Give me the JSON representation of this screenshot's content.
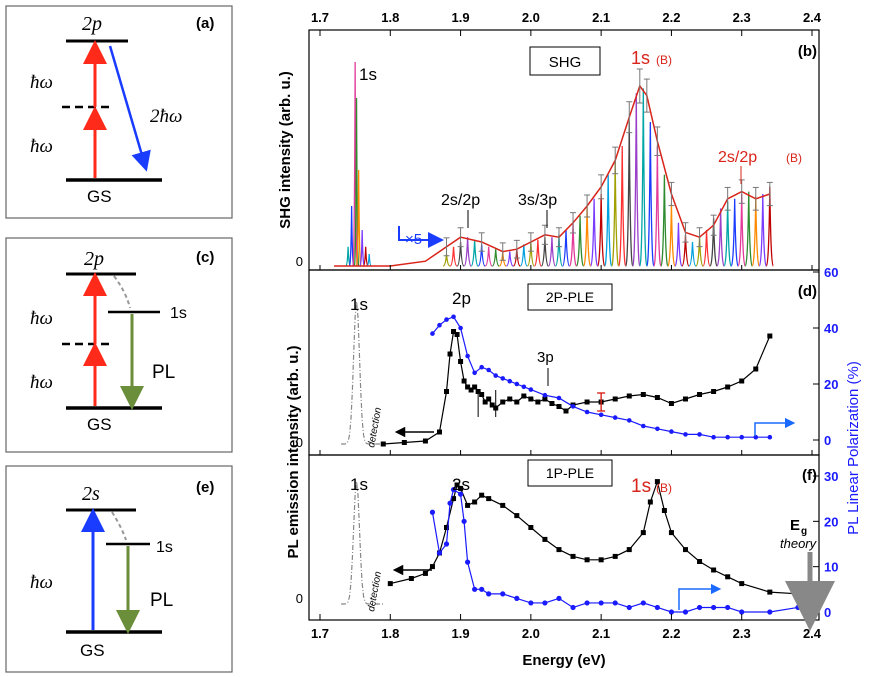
{
  "diagram_a": {
    "panel": "(a)",
    "upper_state": "2p",
    "ground_state": "GS",
    "photon_1": "ħω",
    "photon_2": "ħω",
    "emission": "2ħω"
  },
  "diagram_c": {
    "panel": "(c)",
    "upper_state": "2p",
    "intermediate_state": "1s",
    "ground_state": "GS",
    "photon_1": "ħω",
    "photon_2": "ħω",
    "emission": "PL"
  },
  "diagram_e": {
    "panel": "(e)",
    "upper_state": "2s",
    "intermediate_state": "1s",
    "ground_state": "GS",
    "photon": "ħω",
    "emission": "PL"
  },
  "colors": {
    "red_arrow": "#ff2a1a",
    "blue_arrow": "#1a3cff",
    "green_arrow": "#6b8e3a",
    "fit_red": "#d8241a",
    "pl_blue": "#1a1aff",
    "dash_gray": "#888888"
  },
  "chart_data": [
    {
      "type": "line",
      "panel": "(b)",
      "legend_box": "SHG",
      "ylabel": "SHG intensity (arb. u.)",
      "top_axis_ticks": [
        "1.7",
        "1.8",
        "1.9",
        "2.0",
        "2.1",
        "2.2",
        "2.3",
        "2.4"
      ],
      "y_tick_labels": [
        "0"
      ],
      "xlim": [
        1.7,
        2.4
      ],
      "annotations": {
        "peak_1s": "1s",
        "peak_2s2p": "2s/2p",
        "peak_3s3p": "3s/3p",
        "peak_1sB": "1s",
        "peak_1sB_sub": "(B)",
        "peak_2s2pB": "2s/2p",
        "peak_2s2pB_sub": "(B)",
        "scale": "×5"
      },
      "red_fit": {
        "x": [
          1.72,
          1.74,
          1.755,
          1.765,
          1.8,
          1.85,
          1.88,
          1.9,
          1.93,
          1.96,
          1.98,
          2.0,
          2.02,
          2.04,
          2.06,
          2.08,
          2.1,
          2.12,
          2.14,
          2.155,
          2.165,
          2.18,
          2.2,
          2.22,
          2.24,
          2.26,
          2.28,
          2.3,
          2.32,
          2.34
        ],
        "y": [
          0.0,
          0.0,
          0.0,
          0.0,
          0.0,
          0.02,
          0.08,
          0.12,
          0.1,
          0.06,
          0.07,
          0.1,
          0.13,
          0.12,
          0.18,
          0.25,
          0.33,
          0.44,
          0.62,
          0.75,
          0.71,
          0.52,
          0.3,
          0.14,
          0.12,
          0.17,
          0.28,
          0.31,
          0.28,
          0.3
        ]
      },
      "spectra_peaks": {
        "x": [
          1.74,
          1.745,
          1.75,
          1.752,
          1.755,
          1.76,
          1.765,
          1.77,
          1.88,
          1.89,
          1.9,
          1.91,
          1.92,
          1.93,
          1.94,
          1.95,
          1.96,
          1.97,
          1.98,
          1.99,
          2.0,
          2.01,
          2.02,
          2.03,
          2.04,
          2.05,
          2.06,
          2.07,
          2.08,
          2.09,
          2.1,
          2.11,
          2.12,
          2.13,
          2.14,
          2.15,
          2.16,
          2.17,
          2.18,
          2.19,
          2.2,
          2.21,
          2.22,
          2.23,
          2.24,
          2.25,
          2.26,
          2.27,
          2.28,
          2.29,
          2.3,
          2.31,
          2.32,
          2.33,
          2.34
        ],
        "y": [
          0.08,
          0.25,
          0.85,
          0.7,
          0.4,
          0.15,
          0.08,
          0.05,
          0.05,
          0.08,
          0.1,
          0.12,
          0.11,
          0.09,
          0.08,
          0.07,
          0.06,
          0.06,
          0.07,
          0.09,
          0.1,
          0.11,
          0.12,
          0.12,
          0.13,
          0.15,
          0.18,
          0.21,
          0.25,
          0.28,
          0.3,
          0.38,
          0.44,
          0.5,
          0.6,
          0.72,
          0.74,
          0.6,
          0.5,
          0.38,
          0.26,
          0.18,
          0.13,
          0.1,
          0.12,
          0.15,
          0.2,
          0.24,
          0.27,
          0.28,
          0.3,
          0.31,
          0.29,
          0.3,
          0.33
        ]
      }
    },
    {
      "type": "line",
      "panel": "(d)",
      "legend_box": "2P-PLE",
      "y_tick_labels": [
        "0"
      ],
      "y2_ticks": [
        "0",
        "20",
        "40",
        "60"
      ],
      "annotations": {
        "peak_1s": "1s",
        "peak_2p": "2p",
        "peak_3p": "3p",
        "detection": "detection"
      },
      "series": [
        {
          "name": "",
          "color": "#000000",
          "x": [
            1.79,
            1.82,
            1.85,
            1.87,
            1.88,
            1.885,
            1.89,
            1.895,
            1.9,
            1.905,
            1.91,
            1.915,
            1.92,
            1.925,
            1.93,
            1.935,
            1.94,
            1.945,
            1.95,
            1.96,
            1.97,
            1.98,
            1.99,
            2.0,
            2.01,
            2.02,
            2.03,
            2.04,
            2.05,
            2.06,
            2.08,
            2.1,
            2.12,
            2.14,
            2.16,
            2.18,
            2.2,
            2.22,
            2.24,
            2.26,
            2.28,
            2.3,
            2.32,
            2.34
          ],
          "y": [
            0.0,
            0.01,
            0.02,
            0.08,
            0.35,
            0.6,
            0.75,
            0.73,
            0.55,
            0.42,
            0.38,
            0.36,
            0.38,
            0.35,
            0.33,
            0.28,
            0.3,
            0.26,
            0.24,
            0.28,
            0.3,
            0.28,
            0.32,
            0.3,
            0.28,
            0.3,
            0.27,
            0.25,
            0.22,
            0.26,
            0.28,
            0.28,
            0.3,
            0.32,
            0.33,
            0.31,
            0.27,
            0.3,
            0.33,
            0.35,
            0.38,
            0.42,
            0.5,
            0.72
          ]
        },
        {
          "name": "",
          "color": "#1a1aff",
          "axis": "right",
          "x": [
            1.86,
            1.87,
            1.88,
            1.89,
            1.9,
            1.91,
            1.92,
            1.93,
            1.94,
            1.95,
            1.96,
            1.97,
            1.98,
            1.99,
            2.0,
            2.02,
            2.04,
            2.06,
            2.08,
            2.1,
            2.12,
            2.14,
            2.16,
            2.18,
            2.2,
            2.22,
            2.24,
            2.26,
            2.28,
            2.3,
            2.32,
            2.34
          ],
          "y": [
            38,
            41,
            43,
            44,
            40,
            30,
            24,
            26,
            25,
            23,
            22,
            21,
            20,
            19,
            18,
            16,
            15,
            12,
            10,
            9,
            8,
            7,
            5,
            4,
            3,
            2,
            2,
            1,
            1,
            1,
            1,
            1
          ]
        }
      ]
    },
    {
      "type": "line",
      "panel": "(f)",
      "legend_box": "1P-PLE",
      "xlabel": "Energy (eV)",
      "x_ticks": [
        "1.7",
        "1.8",
        "1.9",
        "2.0",
        "2.1",
        "2.2",
        "2.3",
        "2.4"
      ],
      "y_tick_labels": [
        "0"
      ],
      "y2_ticks": [
        "0",
        "10",
        "20",
        "30"
      ],
      "shared_ylabel": "PL emission intensity (arb. u.)",
      "y2_label": "PL Linear Polarization (%)",
      "annotations": {
        "peak_1s": "1s",
        "peak_2s": "2s",
        "peak_1sB": "1s",
        "peak_1sB_sub": "(B)",
        "eg": "E",
        "eg_sub": "g",
        "eg_theory": "theory",
        "detection": "detection"
      },
      "series": [
        {
          "name": "",
          "color": "#000000",
          "x": [
            1.8,
            1.83,
            1.85,
            1.86,
            1.87,
            1.88,
            1.89,
            1.895,
            1.9,
            1.91,
            1.92,
            1.93,
            1.94,
            1.96,
            1.98,
            2.0,
            2.02,
            2.04,
            2.06,
            2.08,
            2.1,
            2.12,
            2.14,
            2.16,
            2.17,
            2.18,
            2.19,
            2.2,
            2.22,
            2.24,
            2.26,
            2.28,
            2.3,
            2.34,
            2.38
          ],
          "y": [
            0.12,
            0.15,
            0.18,
            0.22,
            0.3,
            0.45,
            0.62,
            0.7,
            0.68,
            0.58,
            0.6,
            0.64,
            0.62,
            0.58,
            0.52,
            0.45,
            0.38,
            0.32,
            0.28,
            0.26,
            0.26,
            0.28,
            0.32,
            0.42,
            0.6,
            0.72,
            0.55,
            0.42,
            0.32,
            0.25,
            0.2,
            0.16,
            0.12,
            0.07,
            0.06
          ]
        },
        {
          "name": "",
          "color": "#1a1aff",
          "axis": "right",
          "x": [
            1.86,
            1.87,
            1.88,
            1.885,
            1.89,
            1.9,
            1.905,
            1.91,
            1.92,
            1.93,
            1.94,
            1.96,
            1.98,
            2.0,
            2.02,
            2.04,
            2.06,
            2.08,
            2.1,
            2.12,
            2.14,
            2.16,
            2.18,
            2.2,
            2.22,
            2.24,
            2.26,
            2.28,
            2.3,
            2.34,
            2.38
          ],
          "y": [
            22,
            13,
            15,
            24,
            27,
            26,
            20,
            11,
            5,
            5,
            4,
            4,
            3,
            2,
            2,
            3,
            1,
            2,
            2,
            2,
            1,
            2,
            1,
            0,
            0,
            1,
            1,
            1,
            0,
            0,
            1
          ]
        }
      ]
    }
  ]
}
